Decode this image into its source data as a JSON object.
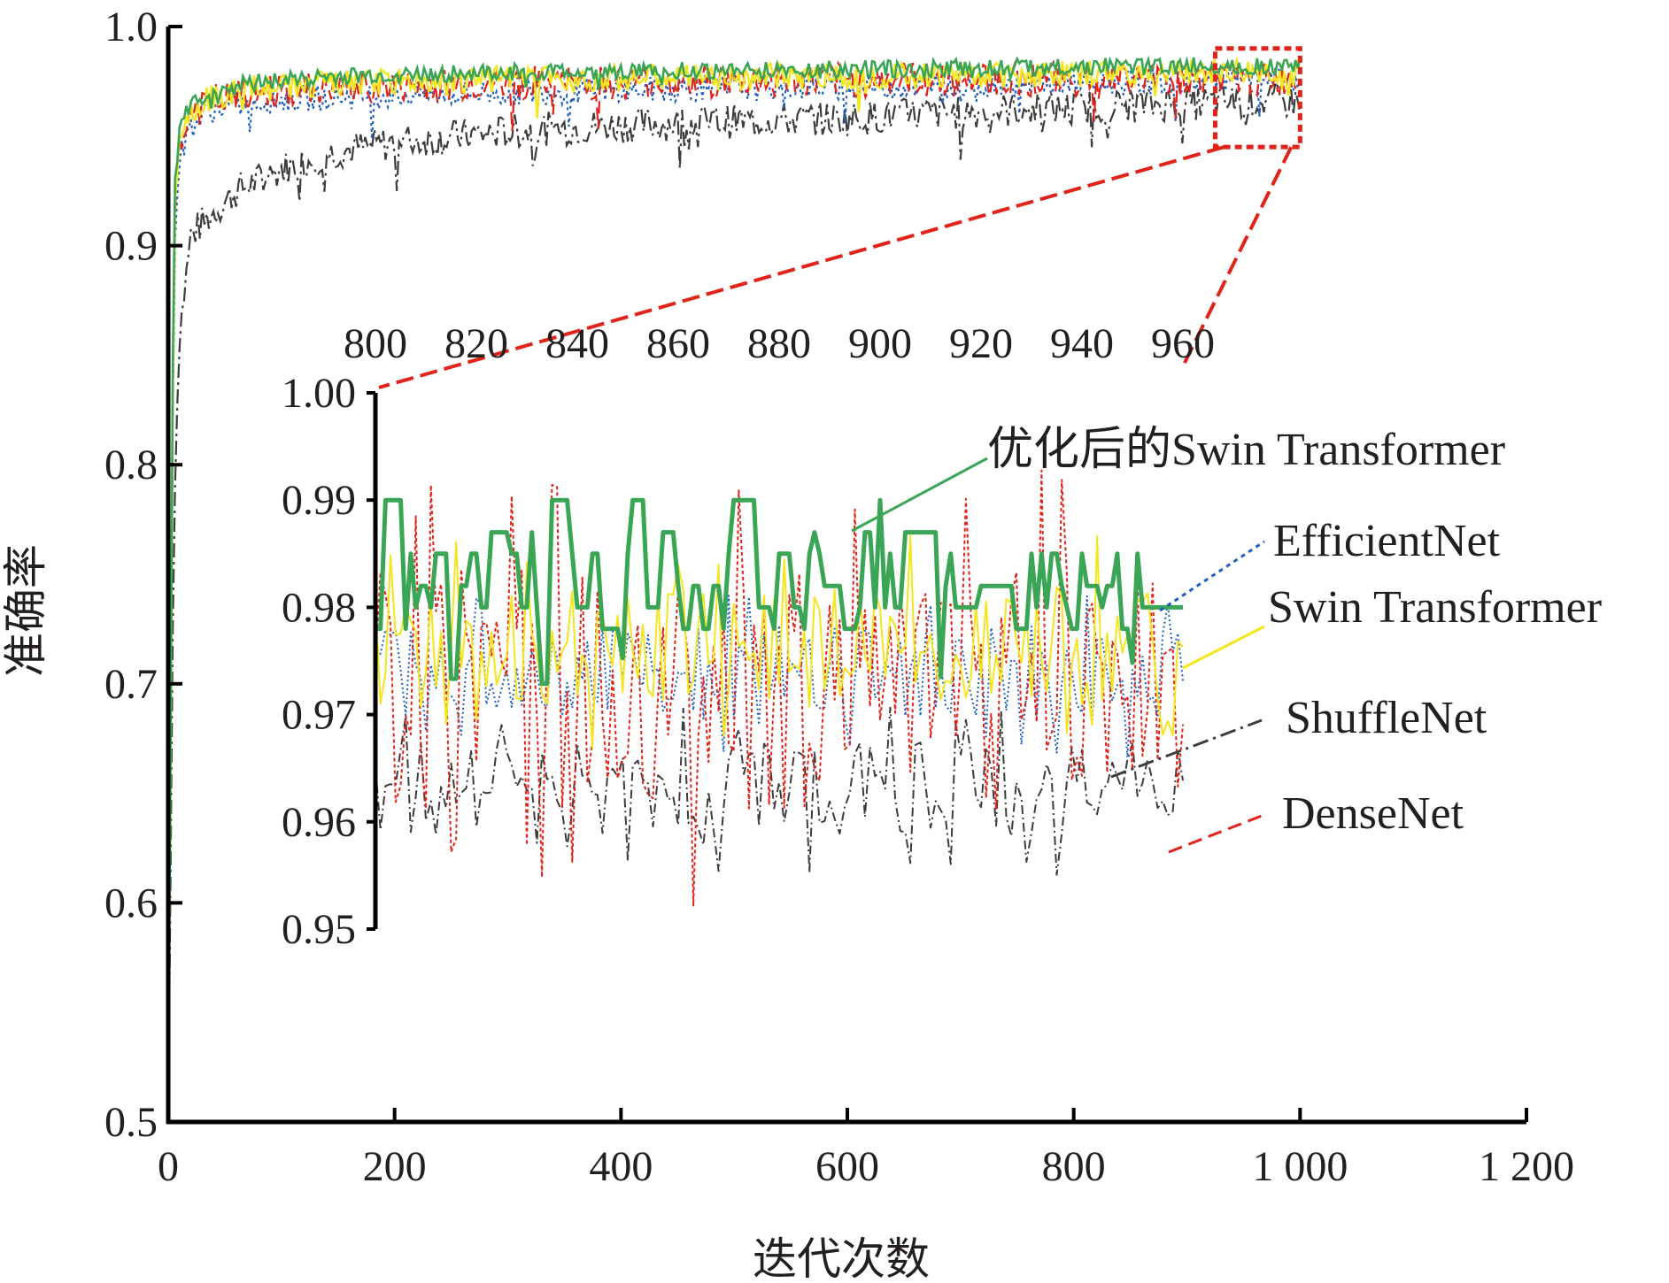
{
  "chart_data": [
    {
      "type": "line",
      "role": "main",
      "xlabel": "迭代次数",
      "ylabel": "准确率",
      "xlim": [
        0,
        1200
      ],
      "ylim": [
        0.5,
        1.0
      ],
      "x_ticks": [
        0,
        200,
        400,
        600,
        800,
        1000,
        1200
      ],
      "x_tick_labels": [
        "0",
        "200",
        "400",
        "600",
        "800",
        "1 000",
        "1 200"
      ],
      "y_ticks": [
        0.5,
        0.6,
        0.7,
        0.8,
        0.9,
        1.0
      ],
      "y_tick_labels": [
        "0.5",
        "0.6",
        "0.7",
        "0.8",
        "0.9",
        "1.0"
      ],
      "series": [
        {
          "key": "shufflenet",
          "x": [
            0,
            5,
            10,
            20,
            40,
            60,
            80,
            100,
            150,
            200,
            300,
            400,
            500,
            600,
            700,
            800,
            900,
            1000
          ],
          "y": [
            0.5,
            0.78,
            0.86,
            0.905,
            0.915,
            0.925,
            0.93,
            0.935,
            0.943,
            0.947,
            0.952,
            0.955,
            0.957,
            0.958,
            0.961,
            0.963,
            0.965,
            0.966
          ]
        },
        {
          "key": "efficientnet",
          "x": [
            0,
            5,
            10,
            20,
            40,
            80,
            150,
            300,
            500,
            700,
            900,
            1000
          ],
          "y": [
            0.5,
            0.9,
            0.94,
            0.955,
            0.962,
            0.966,
            0.968,
            0.97,
            0.972,
            0.973,
            0.975,
            0.976
          ]
        },
        {
          "key": "densenet",
          "x": [
            0,
            5,
            10,
            20,
            40,
            80,
            150,
            300,
            500,
            700,
            900,
            1000
          ],
          "y": [
            0.5,
            0.91,
            0.945,
            0.96,
            0.966,
            0.97,
            0.972,
            0.974,
            0.975,
            0.976,
            0.976,
            0.976
          ]
        },
        {
          "key": "swin",
          "x": [
            0,
            5,
            10,
            20,
            40,
            80,
            150,
            300,
            500,
            700,
            900,
            1000
          ],
          "y": [
            0.5,
            0.92,
            0.95,
            0.962,
            0.968,
            0.972,
            0.974,
            0.976,
            0.977,
            0.978,
            0.979,
            0.979
          ]
        },
        {
          "key": "optswin",
          "x": [
            0,
            5,
            10,
            20,
            40,
            80,
            150,
            300,
            500,
            700,
            900,
            1000
          ],
          "y": [
            0.5,
            0.925,
            0.952,
            0.965,
            0.971,
            0.975,
            0.977,
            0.979,
            0.98,
            0.981,
            0.982,
            0.982
          ]
        }
      ],
      "zoom_box": {
        "x": [
          925,
          1000
        ],
        "y": [
          0.945,
          0.99
        ]
      }
    },
    {
      "type": "line",
      "role": "inset",
      "xlim": [
        800,
        960
      ],
      "ylim": [
        0.95,
        1.0
      ],
      "x_ticks": [
        800,
        820,
        840,
        860,
        880,
        900,
        920,
        940,
        960
      ],
      "x_tick_labels": [
        "800",
        "820",
        "840",
        "860",
        "880",
        "900",
        "920",
        "940",
        "960"
      ],
      "y_ticks": [
        0.95,
        0.96,
        0.97,
        0.98,
        0.99,
        1.0
      ],
      "y_tick_labels": [
        "0.95",
        "0.96",
        "0.97",
        "0.98",
        "0.99",
        "1.00"
      ],
      "series": [
        {
          "key": "shufflenet",
          "name": "ShuffleNet",
          "x_range": [
            800,
            960
          ],
          "y_range": [
            0.955,
            0.971
          ]
        },
        {
          "key": "efficientnet",
          "name": "EfficientNet",
          "x_range": [
            800,
            960
          ],
          "y_range": [
            0.966,
            0.982
          ]
        },
        {
          "key": "densenet",
          "name": "DenseNet",
          "x_range": [
            800,
            960
          ],
          "y_range": [
            0.952,
            0.993
          ]
        },
        {
          "key": "swin",
          "name": "Swin Transformer",
          "x_range": [
            800,
            960
          ],
          "y_range": [
            0.966,
            0.987
          ]
        },
        {
          "key": "optswin",
          "name": "优化后的Swin Transformer",
          "x_range": [
            800,
            960
          ],
          "y_range": [
            0.971,
            0.99
          ]
        }
      ]
    }
  ],
  "styles": {
    "shufflenet": {
      "color": "#3d3d3d",
      "dash": "16 5 3 5"
    },
    "efficientnet": {
      "color": "#1f5fbf",
      "dash": "3 4"
    },
    "densenet": {
      "color": "#e2231a",
      "dash": "14 7"
    },
    "swin": {
      "color": "#f5e51c",
      "dash": ""
    },
    "optswin": {
      "color": "#3aa655",
      "dash": ""
    },
    "zoom": "#e2231a",
    "axis": "#000000"
  }
}
